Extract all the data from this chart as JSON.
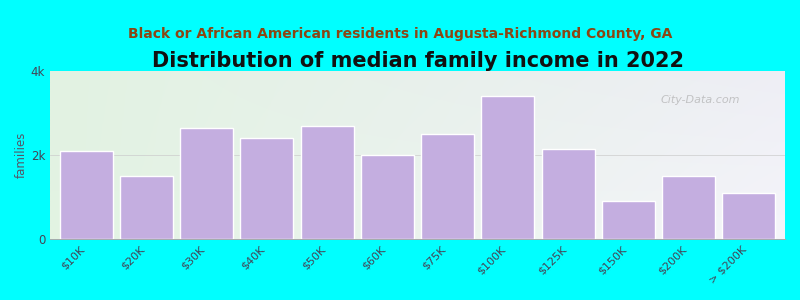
{
  "title": "Distribution of median family income in 2022",
  "subtitle": "Black or African American residents in Augusta-Richmond County, GA",
  "categories": [
    "$10K",
    "$20K",
    "$30K",
    "$40K",
    "$50K",
    "$60K",
    "$75K",
    "$100K",
    "$125K",
    "$150K",
    "$200K",
    "> $200K"
  ],
  "values": [
    2100,
    1500,
    2650,
    2400,
    2700,
    2000,
    2500,
    3400,
    2150,
    900,
    1500,
    1100
  ],
  "bar_color": "#c4aee0",
  "bar_edgecolor": "#ffffff",
  "ylabel": "families",
  "ylim": [
    0,
    4000
  ],
  "yticks": [
    0,
    2000,
    4000
  ],
  "ytick_labels": [
    "0",
    "2k",
    "4k"
  ],
  "bg_color": "#00ffff",
  "grad_color_topleft": "#e2f3e2",
  "grad_color_right": "#e8e8f0",
  "title_fontsize": 15,
  "subtitle_fontsize": 10,
  "subtitle_color": "#8B4513",
  "watermark": "City-Data.com"
}
